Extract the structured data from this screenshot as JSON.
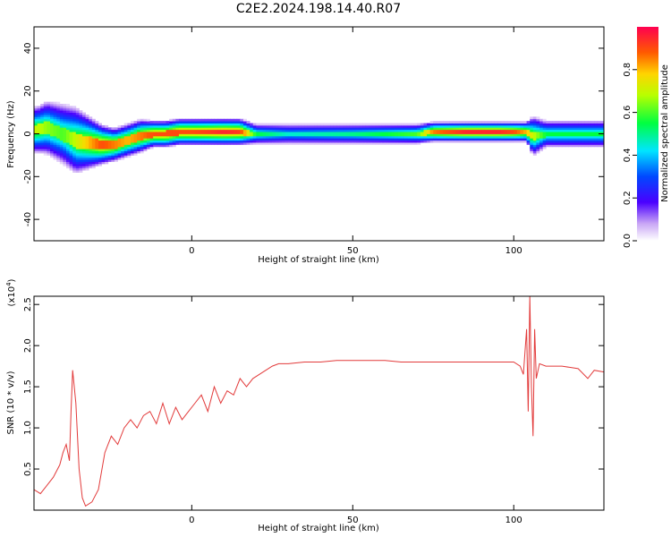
{
  "title": "C2E2.2024.198.14.40.R07",
  "colors": {
    "snr_line": "#e23a3a",
    "frame": "#000000"
  },
  "chart_data": [
    {
      "type": "heatmap",
      "xlabel": "Height of straight line (km)",
      "ylabel": "Frequency (Hz)",
      "xlim": [
        -49,
        128
      ],
      "ylim": [
        -50,
        50
      ],
      "x_ticks": [
        0,
        50,
        100
      ],
      "x_tick_labels": [
        "0",
        "50",
        "100"
      ],
      "y_ticks": [
        40,
        20,
        0,
        -20,
        -40
      ],
      "y_tick_labels": [
        "40",
        "20",
        "0",
        "-20",
        "-40"
      ],
      "ridge": {
        "x": [
          -48,
          -45,
          -40,
          -36,
          -32,
          -28,
          -24,
          -20,
          -16,
          -12,
          -8,
          -4,
          0,
          5,
          10,
          15,
          20,
          30,
          50,
          70,
          75,
          85,
          95,
          100,
          104,
          106,
          110,
          128
        ],
        "freq": [
          2,
          3,
          0,
          -3,
          -4,
          -5,
          -5,
          -3,
          -1,
          0,
          0,
          1,
          1,
          1,
          1,
          1,
          0,
          0,
          0,
          0,
          1,
          1,
          1,
          1,
          1,
          -1,
          0,
          0
        ],
        "width": [
          7,
          8,
          9,
          10,
          8,
          6,
          5,
          5,
          5,
          4,
          4,
          4,
          4,
          4,
          4,
          4,
          3,
          3,
          3,
          3,
          3,
          3,
          3,
          3,
          3,
          6,
          4,
          4
        ],
        "peak": [
          0.7,
          0.65,
          0.6,
          0.7,
          0.8,
          0.9,
          0.85,
          0.8,
          0.85,
          0.9,
          0.9,
          0.9,
          0.9,
          0.92,
          0.95,
          0.92,
          0.55,
          0.45,
          0.5,
          0.6,
          0.85,
          0.95,
          0.95,
          0.9,
          0.8,
          0.7,
          0.55,
          0.55
        ]
      },
      "colorbar": {
        "label": "Normalized spectral amplitude",
        "range": [
          0,
          1
        ],
        "ticks": [
          0.0,
          0.2,
          0.4,
          0.6,
          0.8
        ],
        "tick_labels": [
          "0.0",
          "0.2",
          "0.4",
          "0.6",
          "0.8"
        ]
      }
    },
    {
      "type": "line",
      "xlabel": "Height of straight line (km)",
      "ylabel": "SNR (10 * v/v)",
      "yunit": "(x10",
      "yunit_exp": "4",
      "yunit_close": ")",
      "xlim": [
        -49,
        128
      ],
      "ylim": [
        0,
        2.6
      ],
      "x_ticks": [
        0,
        50,
        100
      ],
      "x_tick_labels": [
        "0",
        "50",
        "100"
      ],
      "y_ticks": [
        0.5,
        1.0,
        1.5,
        2.0,
        2.5
      ],
      "y_tick_labels": [
        "0.5",
        "1.0",
        "1.5",
        "2.0",
        "2.5"
      ],
      "series": [
        {
          "color": "#e23a3a",
          "x": [
            -49,
            -47,
            -45,
            -43,
            -41,
            -40,
            -39,
            -38,
            -37.5,
            -37,
            -36,
            -35,
            -34,
            -33,
            -31,
            -29,
            -27,
            -25,
            -23,
            -21,
            -19,
            -17,
            -15,
            -13,
            -11,
            -9,
            -7,
            -5,
            -3,
            -1,
            1,
            3,
            5,
            7,
            9,
            11,
            13,
            15,
            17,
            19,
            21,
            23,
            25,
            27,
            30,
            35,
            40,
            45,
            50,
            55,
            60,
            65,
            70,
            75,
            80,
            85,
            90,
            95,
            100,
            102,
            103,
            104,
            104.5,
            105,
            105.5,
            106,
            106.5,
            107,
            108,
            110,
            115,
            120,
            123,
            125,
            128
          ],
          "y": [
            0.25,
            0.2,
            0.3,
            0.4,
            0.55,
            0.7,
            0.8,
            0.6,
            1.2,
            1.7,
            1.3,
            0.5,
            0.15,
            0.05,
            0.1,
            0.25,
            0.7,
            0.9,
            0.8,
            1.0,
            1.1,
            1.0,
            1.15,
            1.2,
            1.05,
            1.3,
            1.05,
            1.25,
            1.1,
            1.2,
            1.3,
            1.4,
            1.2,
            1.5,
            1.3,
            1.45,
            1.4,
            1.6,
            1.5,
            1.6,
            1.65,
            1.7,
            1.75,
            1.78,
            1.78,
            1.8,
            1.8,
            1.82,
            1.82,
            1.82,
            1.82,
            1.8,
            1.8,
            1.8,
            1.8,
            1.8,
            1.8,
            1.8,
            1.8,
            1.75,
            1.65,
            2.2,
            1.2,
            2.6,
            1.5,
            0.9,
            2.2,
            1.6,
            1.78,
            1.75,
            1.75,
            1.72,
            1.6,
            1.7,
            1.68
          ]
        }
      ]
    }
  ]
}
